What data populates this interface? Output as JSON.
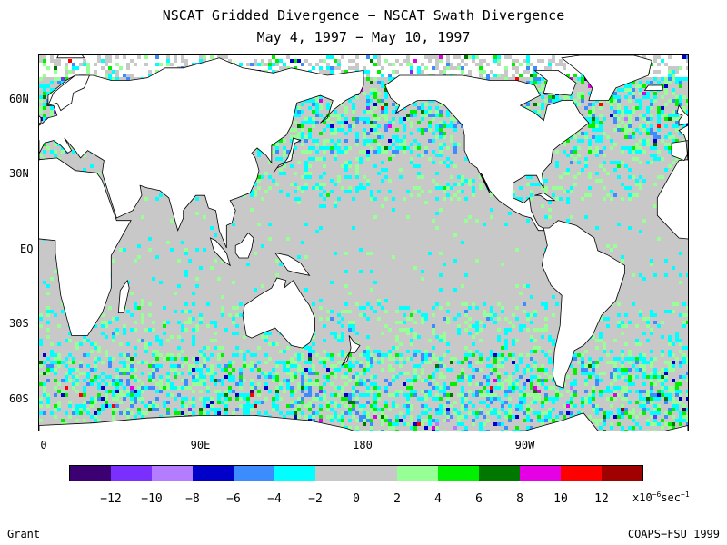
{
  "title": "NSCAT Gridded Divergence − NSCAT Swath Divergence",
  "subtitle": "May 4, 1997 − May 10, 1997",
  "lat_labels": [
    {
      "text": "60N",
      "lat": 60
    },
    {
      "text": "30N",
      "lat": 30
    },
    {
      "text": "EQ",
      "lat": 0
    },
    {
      "text": "30S",
      "lat": -30
    },
    {
      "text": "60S",
      "lat": -60
    }
  ],
  "lon_labels": [
    {
      "text": "0",
      "lon": 0
    },
    {
      "text": "90E",
      "lon": 90
    },
    {
      "text": "180",
      "lon": 180
    },
    {
      "text": "90W",
      "lon": 270
    }
  ],
  "map_extent": {
    "lon_min": 0,
    "lon_max": 360,
    "lat_min": -72,
    "lat_max": 78
  },
  "colorbar": {
    "colors": [
      "#3d0073",
      "#7b2fff",
      "#b47cff",
      "#0000c8",
      "#3c8cff",
      "#00ffff",
      "#c8c8c8",
      "#c8c8c8",
      "#96ff96",
      "#00f000",
      "#007800",
      "#e600e6",
      "#ff0000",
      "#a00000"
    ],
    "tick_labels": [
      "−12",
      "−10",
      "−8",
      "−6",
      "−4",
      "−2",
      "0",
      "2",
      "4",
      "6",
      "8",
      "10",
      "12"
    ],
    "units_base": "x10",
    "units_exp1": "−6",
    "units_mid": "sec",
    "units_exp2": "−1"
  },
  "author": "Grant",
  "credit": "COAPS−FSU 1999",
  "land_color": "#ffffff",
  "missing_color": "#c8c8c8"
}
